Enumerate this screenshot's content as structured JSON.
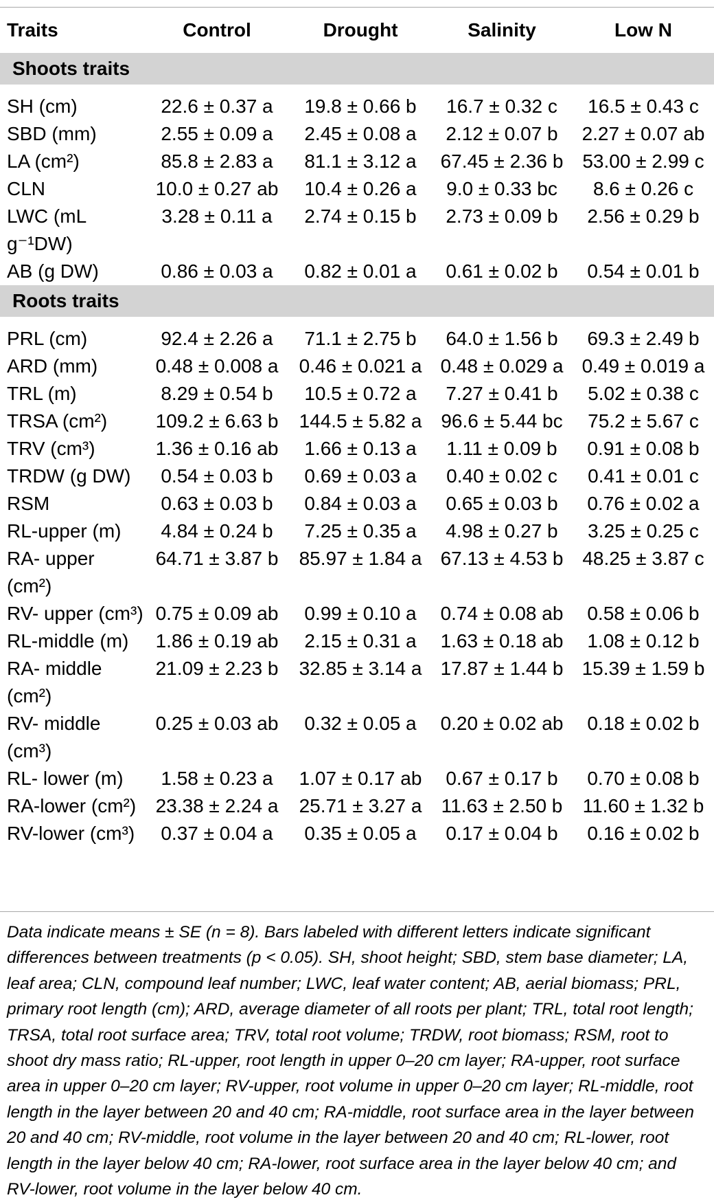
{
  "headers": [
    "Traits",
    "Control",
    "Drought",
    "Salinity",
    "Low N"
  ],
  "sections": [
    {
      "title": "Shoots traits",
      "rows": [
        {
          "trait": "SH (cm)",
          "values": [
            "22.6 ± 0.37 a",
            "19.8 ± 0.66 b",
            "16.7 ± 0.32 c",
            "16.5 ± 0.43 c"
          ]
        },
        {
          "trait": "SBD (mm)",
          "values": [
            "2.55 ± 0.09 a",
            "2.45 ± 0.08 a",
            "2.12 ± 0.07 b",
            "2.27 ± 0.07 ab"
          ]
        },
        {
          "trait": "LA (cm²)",
          "values": [
            "85.8 ± 2.83 a",
            "81.1 ± 3.12 a",
            "67.45 ± 2.36 b",
            "53.00 ± 2.99 c"
          ]
        },
        {
          "trait": "CLN",
          "values": [
            "10.0 ± 0.27 ab",
            "10.4 ± 0.26 a",
            "9.0 ± 0.33 bc",
            "8.6 ± 0.26 c"
          ]
        },
        {
          "trait": "LWC (mL g⁻¹DW)",
          "values": [
            "3.28 ± 0.11 a",
            "2.74 ± 0.15 b",
            "2.73 ± 0.09 b",
            "2.56 ± 0.29 b"
          ]
        },
        {
          "trait": "AB (g DW)",
          "values": [
            "0.86 ± 0.03 a",
            "0.82 ± 0.01 a",
            "0.61 ± 0.02 b",
            "0.54 ± 0.01 b"
          ]
        }
      ]
    },
    {
      "title": "Roots traits",
      "rows": [
        {
          "trait": "PRL (cm)",
          "values": [
            "92.4 ± 2.26 a",
            "71.1 ± 2.75 b",
            "64.0 ± 1.56 b",
            "69.3 ± 2.49 b"
          ]
        },
        {
          "trait": "ARD (mm)",
          "values": [
            "0.48 ± 0.008 a",
            "0.46 ± 0.021 a",
            "0.48 ± 0.029 a",
            "0.49 ± 0.019 a"
          ]
        },
        {
          "trait": "TRL (m)",
          "values": [
            "8.29 ± 0.54 b",
            "10.5 ± 0.72 a",
            "7.27 ± 0.41 b",
            "5.02 ± 0.38 c"
          ]
        },
        {
          "trait": "TRSA (cm²)",
          "values": [
            "109.2 ± 6.63 b",
            "144.5 ± 5.82 a",
            "96.6 ± 5.44 bc",
            "75.2 ± 5.67 c"
          ]
        },
        {
          "trait": "TRV (cm³)",
          "values": [
            "1.36 ± 0.16 ab",
            "1.66 ± 0.13 a",
            "1.11 ± 0.09 b",
            "0.91 ± 0.08 b"
          ]
        },
        {
          "trait": "TRDW (g DW)",
          "values": [
            "0.54 ± 0.03 b",
            "0.69 ± 0.03 a",
            "0.40 ± 0.02 c",
            "0.41 ± 0.01 c"
          ]
        },
        {
          "trait": "RSM",
          "values": [
            "0.63 ± 0.03 b",
            "0.84 ± 0.03 a",
            "0.65 ± 0.03 b",
            "0.76 ± 0.02 a"
          ]
        },
        {
          "trait": "RL-upper (m)",
          "values": [
            "4.84 ± 0.24 b",
            "7.25 ± 0.35 a",
            "4.98 ± 0.27 b",
            "3.25 ± 0.25 c"
          ]
        },
        {
          "trait": "RA- upper (cm²)",
          "values": [
            "64.71 ± 3.87 b",
            "85.97 ± 1.84 a",
            "67.13 ± 4.53 b",
            "48.25 ± 3.87 c"
          ]
        },
        {
          "trait": "RV- upper (cm³)",
          "values": [
            "0.75 ± 0.09 ab",
            "0.99 ± 0.10 a",
            "0.74 ± 0.08 ab",
            "0.58 ± 0.06 b"
          ]
        },
        {
          "trait": "RL-middle (m)",
          "values": [
            "1.86 ± 0.19 ab",
            "2.15 ± 0.31 a",
            "1.63 ± 0.18 ab",
            "1.08 ± 0.12 b"
          ]
        },
        {
          "trait": "RA- middle (cm²)",
          "values": [
            "21.09 ± 2.23 b",
            "32.85 ± 3.14 a",
            "17.87 ± 1.44 b",
            "15.39 ± 1.59 b"
          ]
        },
        {
          "trait": "RV- middle (cm³)",
          "values": [
            "0.25 ± 0.03 ab",
            "0.32 ± 0.05 a",
            "0.20 ± 0.02 ab",
            "0.18 ± 0.02 b"
          ]
        },
        {
          "trait": "RL- lower (m)",
          "values": [
            "1.58 ± 0.23 a",
            "1.07 ± 0.17 ab",
            "0.67 ± 0.17 b",
            "0.70 ± 0.08 b"
          ]
        },
        {
          "trait": "RA-lower (cm²)",
          "values": [
            "23.38 ± 2.24 a",
            "25.71 ± 3.27 a",
            "11.63 ± 2.50 b",
            "11.60 ± 1.32 b"
          ]
        },
        {
          "trait": "RV-lower (cm³)",
          "values": [
            "0.37 ± 0.04 a",
            "0.35 ± 0.05 a",
            "0.17 ± 0.04 b",
            "0.16 ± 0.02 b"
          ]
        }
      ]
    }
  ],
  "footnote": "Data indicate means ± SE (n = 8). Bars labeled with different letters indicate significant differences between treatments (p < 0.05). SH, shoot height; SBD, stem base diameter; LA, leaf area; CLN, compound leaf number; LWC, leaf water content; AB, aerial biomass; PRL, primary root length (cm); ARD, average diameter of all roots per plant; TRL, total root length; TRSA, total root surface area; TRV, total root volume; TRDW, root biomass; RSM, root to shoot dry mass ratio; RL-upper, root length in upper 0–20 cm layer; RA-upper, root surface area in upper 0–20 cm layer; RV-upper, root volume in upper 0–20 cm layer; RL-middle, root length in the layer between 20 and 40 cm; RA-middle, root surface area in the layer between 20 and 40 cm; RV-middle, root volume in the layer between 20 and 40 cm; RL-lower, root length in the layer below 40 cm; RA-lower, root surface area in the layer below 40 cm; and RV-lower, root volume in the layer below 40 cm."
}
